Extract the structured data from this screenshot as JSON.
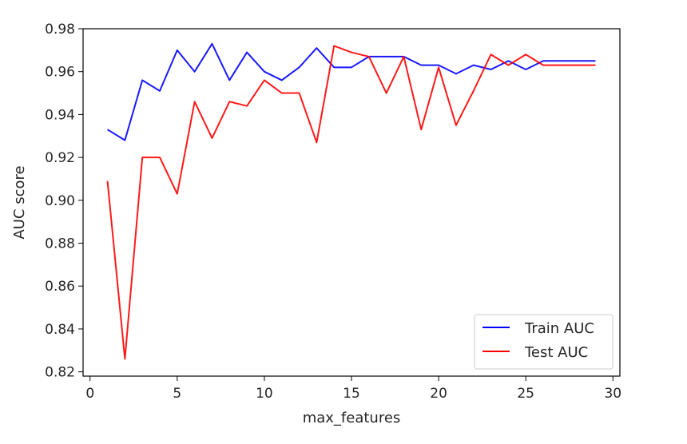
{
  "chart_data": {
    "type": "line",
    "title": "",
    "xlabel": "max_features",
    "ylabel": "AUC score",
    "xlim": [
      -0.4,
      30.4
    ],
    "ylim": [
      0.818,
      0.98
    ],
    "xticks": [
      0,
      5,
      10,
      15,
      20,
      25,
      30
    ],
    "yticks": [
      0.82,
      0.84,
      0.86,
      0.88,
      0.9,
      0.92,
      0.94,
      0.96,
      0.98
    ],
    "ytick_labels": [
      "0.82",
      "0.84",
      "0.86",
      "0.88",
      "0.90",
      "0.92",
      "0.94",
      "0.96",
      "0.98"
    ],
    "grid": false,
    "legend_position": "lower right",
    "x": [
      1,
      2,
      3,
      4,
      5,
      6,
      7,
      8,
      9,
      10,
      11,
      12,
      13,
      14,
      15,
      16,
      17,
      18,
      19,
      20,
      21,
      22,
      23,
      24,
      25,
      26,
      27,
      28,
      29
    ],
    "series": [
      {
        "name": "Train AUC",
        "color": "#0000ff",
        "values": [
          0.933,
          0.928,
          0.956,
          0.951,
          0.97,
          0.96,
          0.973,
          0.956,
          0.969,
          0.96,
          0.956,
          0.962,
          0.971,
          0.962,
          0.962,
          0.967,
          0.967,
          0.967,
          0.963,
          0.963,
          0.959,
          0.963,
          0.961,
          0.965,
          0.961,
          0.965,
          0.965,
          0.965,
          0.965
        ]
      },
      {
        "name": "Test AUC",
        "color": "#ff0000",
        "values": [
          0.909,
          0.826,
          0.92,
          0.92,
          0.903,
          0.946,
          0.929,
          0.946,
          0.944,
          0.956,
          0.95,
          0.95,
          0.927,
          0.972,
          0.969,
          0.967,
          0.95,
          0.967,
          0.933,
          0.962,
          0.935,
          0.951,
          0.968,
          0.963,
          0.968,
          0.963,
          0.963,
          0.963,
          0.963
        ]
      }
    ]
  }
}
